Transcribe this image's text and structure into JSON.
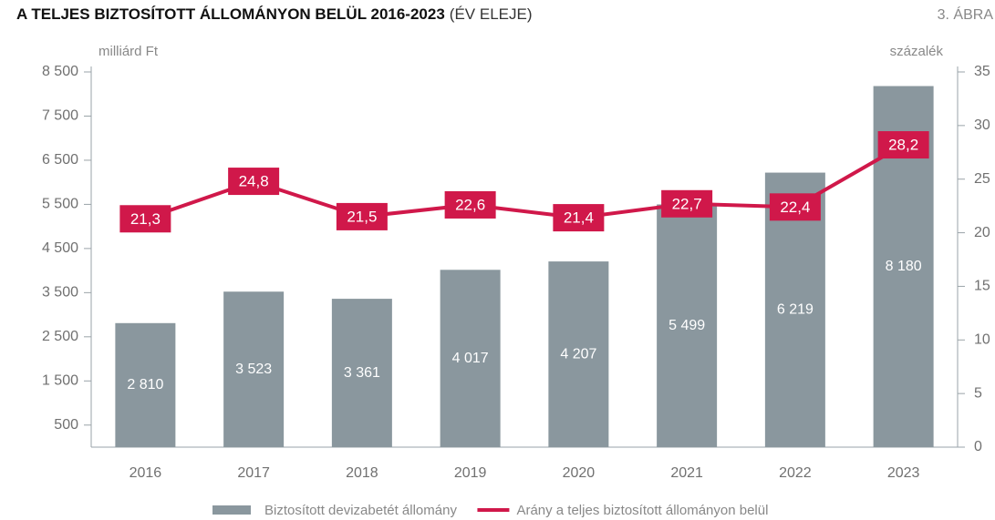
{
  "chart_data": {
    "type": "bar_line",
    "title": "A TELJES BIZTOSÍTOTT ÁLLOMÁNYON BELÜL 2016-2023",
    "subtitle": "(ÉV ELEJE)",
    "figure_label": "3. ÁBRA",
    "ylabel": "milliárd Ft",
    "y2label": "százalék",
    "categories": [
      "2016",
      "2017",
      "2018",
      "2019",
      "2020",
      "2021",
      "2022",
      "2023"
    ],
    "series": [
      {
        "name": "Biztosított devizabetét állomány",
        "type": "bar",
        "color": "#8a979e",
        "values": [
          2810,
          3523,
          3361,
          4017,
          4207,
          5499,
          6219,
          8180
        ],
        "value_labels": [
          "2 810",
          "3 523",
          "3 361",
          "4 017",
          "4 207",
          "5 499",
          "6 219",
          "8 180"
        ]
      },
      {
        "name": "Arány a teljes biztosított állományon belül",
        "type": "line",
        "axis": "y2",
        "color": "#d0184a",
        "values": [
          21.3,
          24.8,
          21.5,
          22.6,
          21.4,
          22.7,
          22.4,
          28.2
        ],
        "value_labels": [
          "21,3",
          "24,8",
          "21,5",
          "22,6",
          "21,4",
          "22,7",
          "22,4",
          "28,2"
        ]
      }
    ],
    "ylim": [
      0,
      8500
    ],
    "yticks": [
      {
        "value": 500,
        "label": "500"
      },
      {
        "value": 1500,
        "label": "1 500"
      },
      {
        "value": 2500,
        "label": "2 500"
      },
      {
        "value": 3500,
        "label": "3 500"
      },
      {
        "value": 4500,
        "label": "4 500"
      },
      {
        "value": 5500,
        "label": "5 500"
      },
      {
        "value": 6500,
        "label": "6 500"
      },
      {
        "value": 7500,
        "label": "7 500"
      },
      {
        "value": 8500,
        "label": "8 500"
      }
    ],
    "y2lim": [
      0,
      35
    ],
    "y2ticks": [
      0,
      5,
      10,
      15,
      20,
      25,
      30,
      35
    ],
    "legend": "bottom"
  }
}
